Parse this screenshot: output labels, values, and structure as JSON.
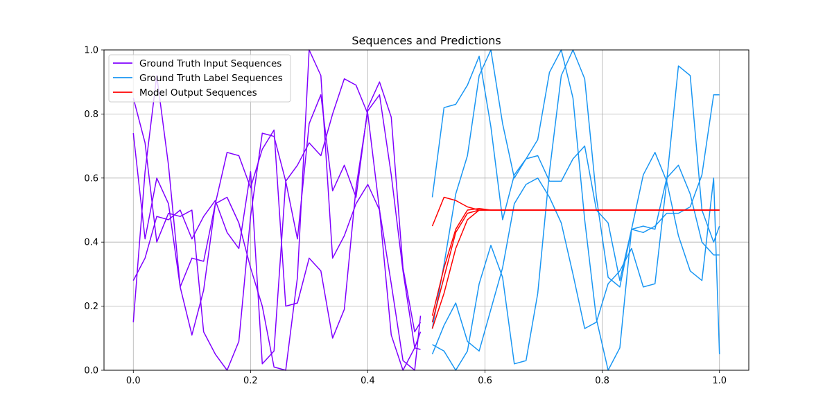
{
  "chart_data": {
    "type": "line",
    "title": "Sequences and Predictions",
    "xlabel": "",
    "ylabel": "",
    "xlim": [
      -0.05,
      1.05
    ],
    "ylim": [
      0.0,
      1.0
    ],
    "grid": true,
    "legend_position": "top-left",
    "xticks": [
      "0.0",
      "0.2",
      "0.4",
      "0.6",
      "0.8",
      "1.0"
    ],
    "yticks": [
      "0.0",
      "0.2",
      "0.4",
      "0.6",
      "0.8",
      "1.0"
    ],
    "groups": [
      {
        "name": "Ground Truth Input Sequences",
        "color": "#8000ff"
      },
      {
        "name": "Ground Truth Label Sequences",
        "color": "#1996f3"
      },
      {
        "name": "Model Output Sequences",
        "color": "#ff0000"
      }
    ],
    "series": [
      {
        "group": 0,
        "x": [
          0.0,
          0.02,
          0.04,
          0.06,
          0.08,
          0.1,
          0.12,
          0.14,
          0.16,
          0.18,
          0.2,
          0.22,
          0.24,
          0.26,
          0.28,
          0.3,
          0.32,
          0.34,
          0.36,
          0.38,
          0.4,
          0.42,
          0.44,
          0.46,
          0.48,
          0.49
        ],
        "y": [
          0.85,
          0.71,
          0.4,
          0.49,
          0.48,
          0.5,
          0.12,
          0.05,
          0.0,
          0.09,
          0.48,
          0.74,
          0.73,
          0.59,
          0.64,
          0.71,
          0.67,
          0.8,
          0.91,
          0.89,
          0.8,
          0.5,
          0.11,
          0.0,
          0.07,
          0.065
        ]
      },
      {
        "group": 0,
        "x": [
          0.0,
          0.02,
          0.04,
          0.06,
          0.08,
          0.1,
          0.12,
          0.14,
          0.16,
          0.18,
          0.2,
          0.22,
          0.24,
          0.26,
          0.28,
          0.3,
          0.32,
          0.34,
          0.36,
          0.38,
          0.4,
          0.42,
          0.44,
          0.46,
          0.48,
          0.49
        ],
        "y": [
          0.15,
          0.62,
          0.92,
          0.64,
          0.26,
          0.11,
          0.25,
          0.52,
          0.68,
          0.67,
          0.57,
          0.69,
          0.75,
          0.2,
          0.21,
          0.35,
          0.31,
          0.1,
          0.19,
          0.57,
          0.81,
          0.86,
          0.61,
          0.31,
          0.07,
          0.12
        ]
      },
      {
        "group": 0,
        "x": [
          0.0,
          0.02,
          0.04,
          0.06,
          0.08,
          0.1,
          0.12,
          0.14,
          0.16,
          0.18,
          0.2,
          0.22,
          0.24,
          0.26,
          0.28,
          0.3,
          0.32,
          0.34,
          0.36,
          0.38,
          0.4,
          0.42,
          0.44,
          0.46,
          0.48,
          0.49
        ],
        "y": [
          0.74,
          0.41,
          0.6,
          0.52,
          0.26,
          0.35,
          0.34,
          0.52,
          0.54,
          0.46,
          0.32,
          0.2,
          0.01,
          0.0,
          0.29,
          1.0,
          0.92,
          0.35,
          0.42,
          0.52,
          0.58,
          0.5,
          0.27,
          0.03,
          0.0,
          0.17
        ]
      },
      {
        "group": 0,
        "x": [
          0.0,
          0.02,
          0.04,
          0.06,
          0.08,
          0.1,
          0.12,
          0.14,
          0.16,
          0.18,
          0.2,
          0.22,
          0.24,
          0.26,
          0.28,
          0.3,
          0.32,
          0.34,
          0.36,
          0.38,
          0.4,
          0.42,
          0.44,
          0.46,
          0.48,
          0.49
        ],
        "y": [
          0.28,
          0.35,
          0.48,
          0.47,
          0.5,
          0.41,
          0.48,
          0.53,
          0.43,
          0.38,
          0.62,
          0.02,
          0.06,
          0.59,
          0.41,
          0.77,
          0.86,
          0.56,
          0.64,
          0.54,
          0.82,
          0.9,
          0.79,
          0.32,
          0.12,
          0.15
        ]
      },
      {
        "group": 1,
        "x": [
          0.51,
          0.53,
          0.55,
          0.57,
          0.59,
          0.61,
          0.63,
          0.65,
          0.67,
          0.69,
          0.71,
          0.73,
          0.75,
          0.77,
          0.79,
          0.81,
          0.83,
          0.85,
          0.87,
          0.89,
          0.91,
          0.93,
          0.95,
          0.97,
          0.99,
          1.0
        ],
        "y": [
          0.54,
          0.82,
          0.83,
          0.89,
          0.98,
          0.76,
          0.47,
          0.61,
          0.66,
          0.67,
          0.59,
          0.59,
          0.66,
          0.7,
          0.5,
          0.46,
          0.28,
          0.44,
          0.43,
          0.45,
          0.49,
          0.49,
          0.51,
          0.61,
          0.86,
          0.86
        ]
      },
      {
        "group": 1,
        "x": [
          0.51,
          0.53,
          0.55,
          0.57,
          0.59,
          0.61,
          0.63,
          0.65,
          0.67,
          0.69,
          0.71,
          0.73,
          0.75,
          0.77,
          0.79,
          0.81,
          0.83,
          0.85,
          0.87,
          0.89,
          0.91,
          0.93,
          0.95,
          0.97,
          0.99,
          1.0
        ],
        "y": [
          0.13,
          0.33,
          0.55,
          0.67,
          0.92,
          1.0,
          0.77,
          0.6,
          0.66,
          0.72,
          0.93,
          1.0,
          0.85,
          0.47,
          0.16,
          0.0,
          0.07,
          0.44,
          0.45,
          0.44,
          0.6,
          0.64,
          0.55,
          0.4,
          0.36,
          0.36
        ]
      },
      {
        "group": 1,
        "x": [
          0.51,
          0.53,
          0.55,
          0.57,
          0.59,
          0.61,
          0.63,
          0.65,
          0.67,
          0.69,
          0.71,
          0.73,
          0.75,
          0.77,
          0.79,
          0.81,
          0.83,
          0.85,
          0.87,
          0.89,
          0.91,
          0.93,
          0.95,
          0.97,
          0.99,
          1.0
        ],
        "y": [
          0.08,
          0.06,
          0.0,
          0.06,
          0.27,
          0.39,
          0.29,
          0.02,
          0.03,
          0.24,
          0.62,
          0.92,
          1.0,
          0.91,
          0.54,
          0.29,
          0.26,
          0.44,
          0.61,
          0.68,
          0.59,
          0.42,
          0.31,
          0.28,
          0.6,
          0.05
        ]
      },
      {
        "group": 1,
        "x": [
          0.51,
          0.53,
          0.55,
          0.57,
          0.59,
          0.61,
          0.63,
          0.65,
          0.67,
          0.69,
          0.71,
          0.73,
          0.75,
          0.77,
          0.79,
          0.81,
          0.83,
          0.85,
          0.87,
          0.89,
          0.91,
          0.93,
          0.95,
          0.97,
          0.99,
          1.0
        ],
        "y": [
          0.05,
          0.14,
          0.21,
          0.09,
          0.06,
          0.19,
          0.32,
          0.52,
          0.58,
          0.6,
          0.54,
          0.46,
          0.3,
          0.13,
          0.15,
          0.27,
          0.31,
          0.38,
          0.26,
          0.27,
          0.59,
          0.95,
          0.92,
          0.5,
          0.4,
          0.45
        ]
      },
      {
        "group": 2,
        "x": [
          0.51,
          0.53,
          0.55,
          0.57,
          0.59,
          0.61,
          0.63,
          0.65,
          0.67,
          0.69,
          0.71,
          0.73,
          0.75,
          0.77,
          0.79,
          0.81,
          0.83,
          0.85,
          0.87,
          0.89,
          0.91,
          0.93,
          0.95,
          0.97,
          0.99,
          1.0
        ],
        "y": [
          0.45,
          0.54,
          0.53,
          0.51,
          0.5,
          0.5,
          0.5,
          0.5,
          0.5,
          0.5,
          0.5,
          0.5,
          0.5,
          0.5,
          0.5,
          0.5,
          0.5,
          0.5,
          0.5,
          0.5,
          0.5,
          0.5,
          0.5,
          0.5,
          0.5,
          0.5
        ]
      },
      {
        "group": 2,
        "x": [
          0.51,
          0.53,
          0.55,
          0.57,
          0.59,
          0.61,
          0.63,
          0.65,
          0.67,
          0.69,
          0.71,
          0.73,
          0.75,
          0.77,
          0.79,
          0.81,
          0.83,
          0.85,
          0.87,
          0.89,
          0.91,
          0.93,
          0.95,
          0.97,
          0.99,
          1.0
        ],
        "y": [
          0.17,
          0.32,
          0.44,
          0.5,
          0.505,
          0.5,
          0.5,
          0.5,
          0.5,
          0.5,
          0.5,
          0.5,
          0.5,
          0.5,
          0.5,
          0.5,
          0.5,
          0.5,
          0.5,
          0.5,
          0.5,
          0.5,
          0.5,
          0.5,
          0.5,
          0.5
        ]
      },
      {
        "group": 2,
        "x": [
          0.51,
          0.53,
          0.55,
          0.57,
          0.59,
          0.61,
          0.63,
          0.65,
          0.67,
          0.69,
          0.71,
          0.73,
          0.75,
          0.77,
          0.79,
          0.81,
          0.83,
          0.85,
          0.87,
          0.89,
          0.91,
          0.93,
          0.95,
          0.97,
          0.99,
          1.0
        ],
        "y": [
          0.15,
          0.29,
          0.43,
          0.49,
          0.5,
          0.5,
          0.5,
          0.5,
          0.5,
          0.5,
          0.5,
          0.5,
          0.5,
          0.5,
          0.5,
          0.5,
          0.5,
          0.5,
          0.5,
          0.5,
          0.5,
          0.5,
          0.5,
          0.5,
          0.5,
          0.5
        ]
      },
      {
        "group": 2,
        "x": [
          0.51,
          0.53,
          0.55,
          0.57,
          0.59,
          0.61,
          0.63,
          0.65,
          0.67,
          0.69,
          0.71,
          0.73,
          0.75,
          0.77,
          0.79,
          0.81,
          0.83,
          0.85,
          0.87,
          0.89,
          0.91,
          0.93,
          0.95,
          0.97,
          0.99,
          1.0
        ],
        "y": [
          0.13,
          0.24,
          0.38,
          0.47,
          0.5,
          0.5,
          0.5,
          0.5,
          0.5,
          0.5,
          0.5,
          0.5,
          0.5,
          0.5,
          0.5,
          0.5,
          0.5,
          0.5,
          0.5,
          0.5,
          0.5,
          0.5,
          0.5,
          0.5,
          0.5,
          0.5
        ]
      }
    ]
  }
}
